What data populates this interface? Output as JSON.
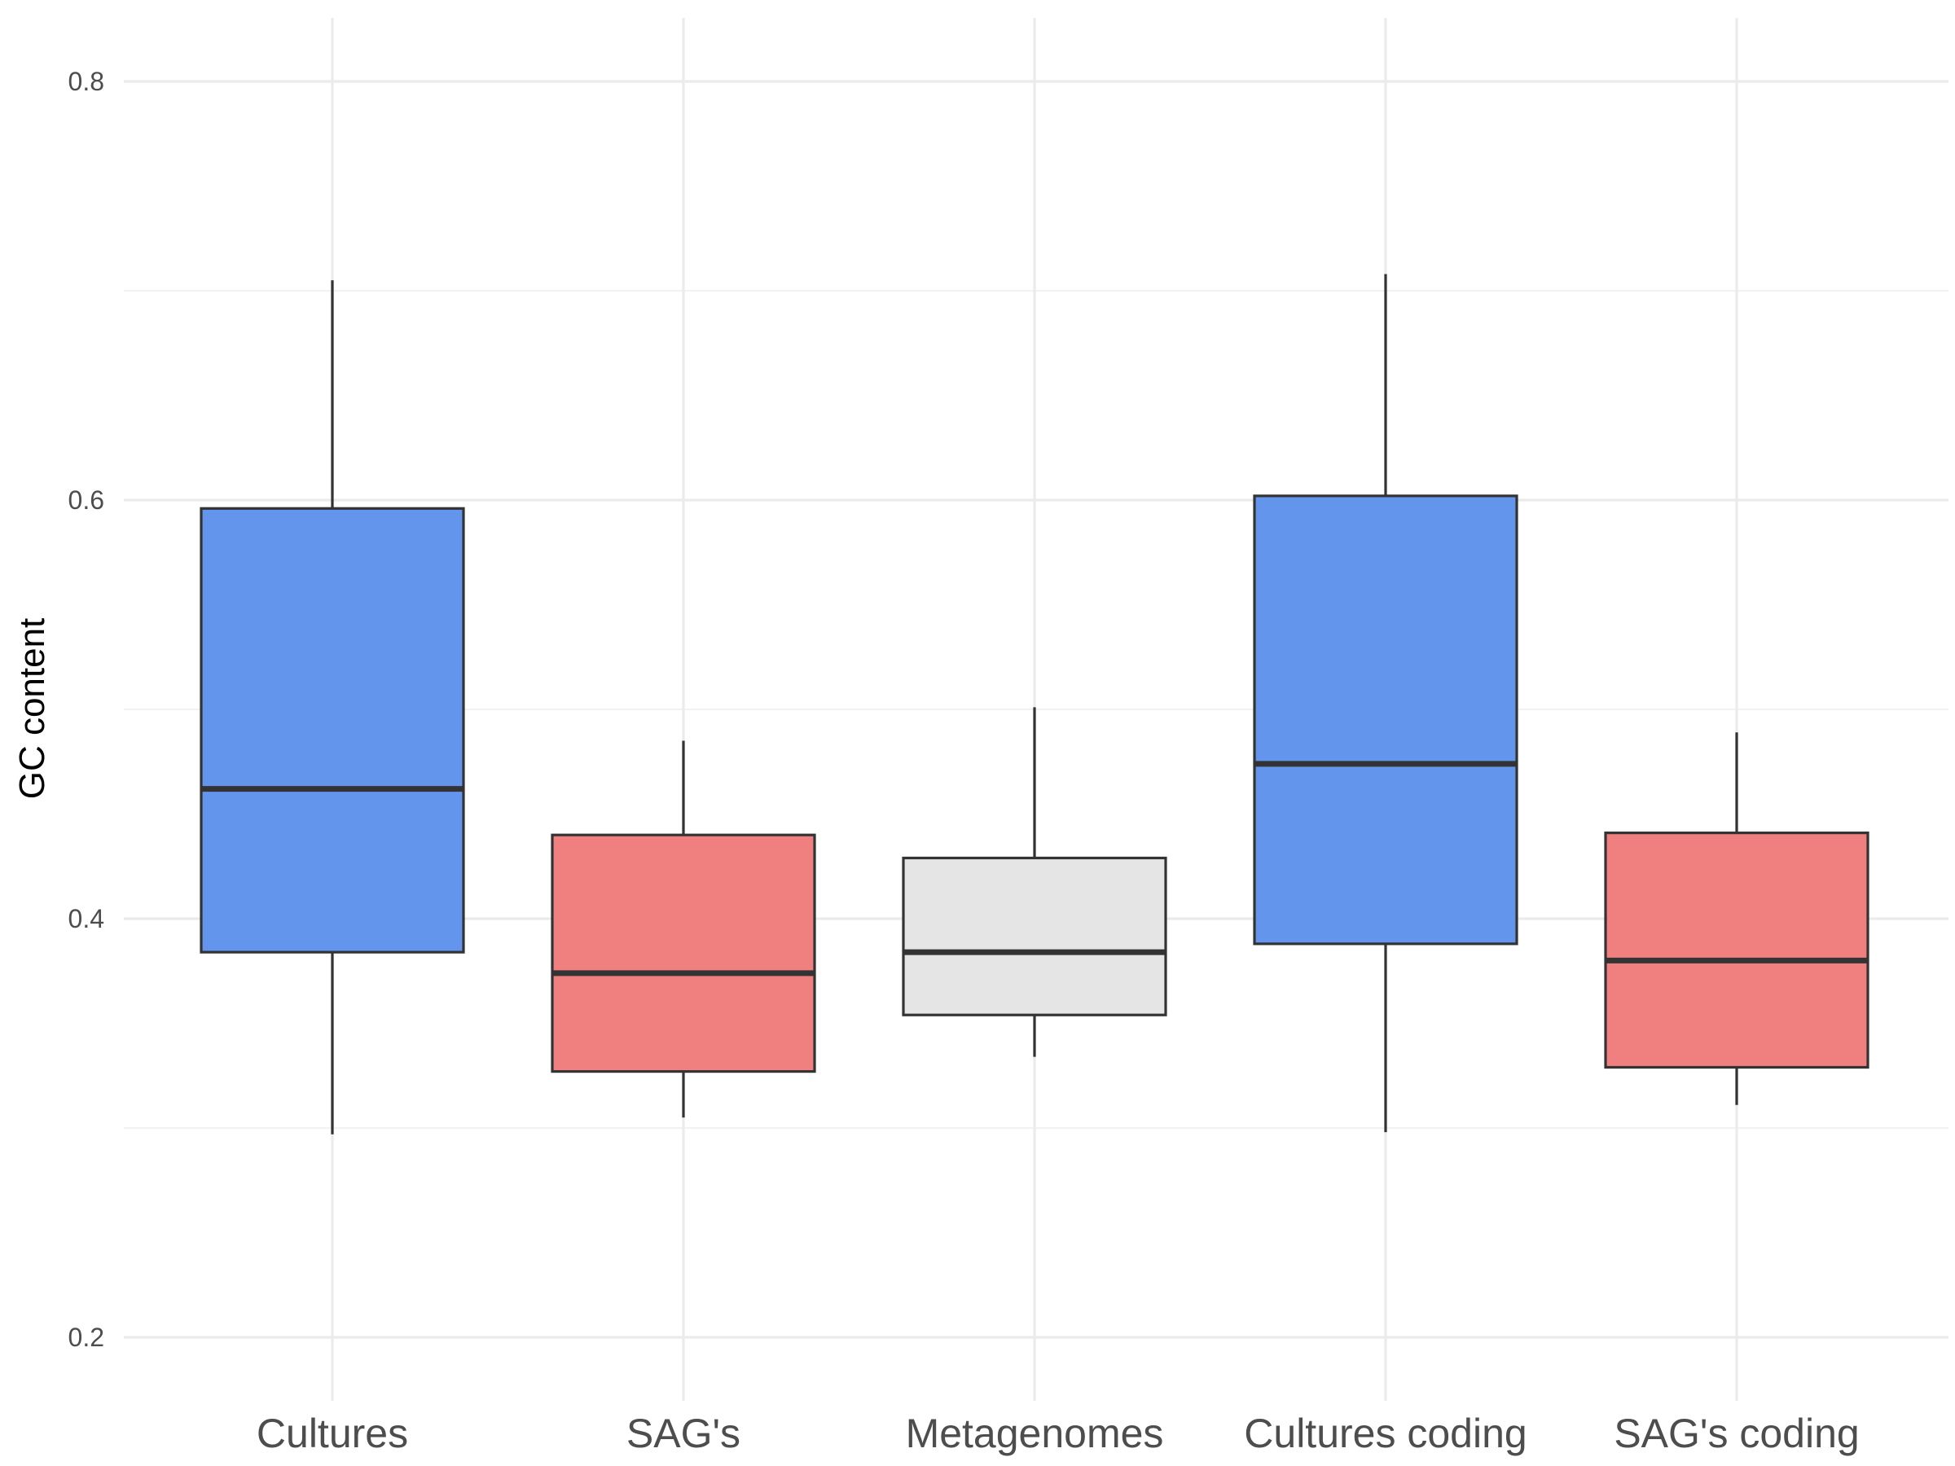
{
  "chart_data": {
    "type": "boxplot",
    "title": "",
    "xlabel": "",
    "ylabel": "GC content",
    "ylim": [
      0.18,
      0.83
    ],
    "y_ticks": [
      {
        "value": 0.2,
        "label": "0.2"
      },
      {
        "value": 0.4,
        "label": "0.4"
      },
      {
        "value": 0.6,
        "label": "0.6"
      },
      {
        "value": 0.8,
        "label": "0.8"
      }
    ],
    "y_minor_ticks": [
      0.3,
      0.5,
      0.7
    ],
    "grid": true,
    "legend": "none",
    "categories": [
      "Cultures",
      "SAG's",
      "Metagenomes",
      "Cultures coding",
      "SAG's coding"
    ],
    "boxes": [
      {
        "category": "Cultures",
        "min": 0.297,
        "q1": 0.384,
        "median": 0.462,
        "q3": 0.596,
        "max": 0.705,
        "color": "#6495ED"
      },
      {
        "category": "SAG's",
        "min": 0.305,
        "q1": 0.327,
        "median": 0.374,
        "q3": 0.44,
        "max": 0.485,
        "color": "#F08080"
      },
      {
        "category": "Metagenomes",
        "min": 0.334,
        "q1": 0.354,
        "median": 0.384,
        "q3": 0.429,
        "max": 0.501,
        "color": "#E5E5E5"
      },
      {
        "category": "Cultures coding",
        "min": 0.298,
        "q1": 0.388,
        "median": 0.474,
        "q3": 0.602,
        "max": 0.708,
        "color": "#6495ED"
      },
      {
        "category": "SAG's coding",
        "min": 0.311,
        "q1": 0.329,
        "median": 0.38,
        "q3": 0.441,
        "max": 0.489,
        "color": "#F08080"
      }
    ]
  }
}
